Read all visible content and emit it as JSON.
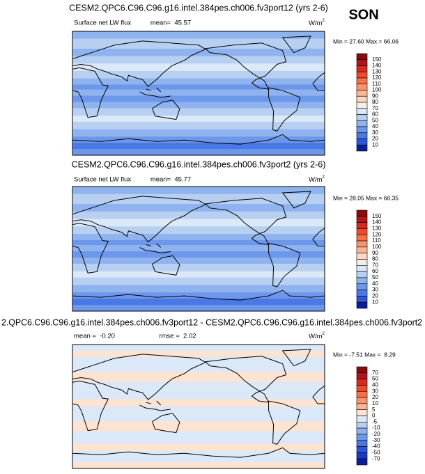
{
  "season": "SON",
  "units": {
    "base": "W/m",
    "sup": "2"
  },
  "panels": [
    {
      "title": "CESM2.QPC6.C96.C96.g16.intel.384pes.ch006.fv3port12 (yrs 2-6)",
      "left": "Surface net LW flux",
      "center": "mean=  45.57",
      "minmax": "Min = 27.60 Max = 66.06",
      "levels": [
        150,
        140,
        130,
        120,
        110,
        100,
        90,
        80,
        70,
        60,
        50,
        40,
        30,
        20,
        10
      ],
      "colors": [
        "#8b0a0a",
        "#b0151a",
        "#d42a20",
        "#ef4a2c",
        "#f7704a",
        "#fa9470",
        "#fcb596",
        "#fdd8c0",
        "#f3efe6",
        "#dbe8f7",
        "#b7d0f2",
        "#8fb3ee",
        "#6c97ea",
        "#4a78e4",
        "#2d57d8",
        "#0a1f9a"
      ]
    },
    {
      "title": "CESM2.QPC6.C96.C96.g16.intel.384pes.ch006.fv3port2 (yrs 2-6)",
      "left": "Surface net LW flux",
      "center": "mean=  45.77",
      "minmax": "Min = 28.05 Max = 66.35",
      "levels": [
        150,
        140,
        130,
        120,
        110,
        100,
        90,
        80,
        70,
        60,
        50,
        40,
        30,
        20,
        10
      ],
      "colors": [
        "#8b0a0a",
        "#b0151a",
        "#d42a20",
        "#ef4a2c",
        "#f7704a",
        "#fa9470",
        "#fcb596",
        "#fdd8c0",
        "#f3efe6",
        "#dbe8f7",
        "#b7d0f2",
        "#8fb3ee",
        "#6c97ea",
        "#4a78e4",
        "#2d57d8",
        "#0a1f9a"
      ]
    },
    {
      "title": "2.QPC6.C96.C96.g16.intel.384pes.ch006.fv3port12 - CESM2.QPC6.C96.C96.g16.intel.384pes.ch006.fv3port2",
      "left": "mean =  -0.20",
      "center": "rmse =  2.02",
      "minmax": "Min = -7.51 Max =  8.29",
      "levels": [
        70,
        50,
        40,
        30,
        20,
        10,
        5,
        0,
        -5,
        -10,
        -20,
        -30,
        -40,
        -50,
        -70
      ],
      "colors": [
        "#8b0a0a",
        "#b0151a",
        "#d42a20",
        "#ef4a2c",
        "#f7704a",
        "#fa9470",
        "#fcb596",
        "#fde3d2",
        "#dbe8f7",
        "#b7d0f2",
        "#8fb3ee",
        "#6c97ea",
        "#4a78e4",
        "#2d57d8",
        "#1a3bc0",
        "#0a1f9a"
      ]
    }
  ]
}
